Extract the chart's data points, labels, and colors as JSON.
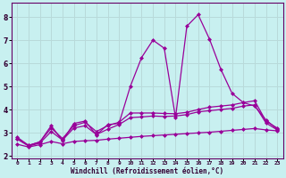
{
  "xlabel": "Windchill (Refroidissement éolien,°C)",
  "bg_color": "#c8f0f0",
  "grid_color": "#b8dada",
  "line_color": "#990099",
  "xlim": [
    -0.5,
    23.5
  ],
  "ylim": [
    1.9,
    8.6
  ],
  "xticks": [
    0,
    1,
    2,
    3,
    4,
    5,
    6,
    7,
    8,
    9,
    10,
    11,
    12,
    13,
    14,
    15,
    16,
    17,
    18,
    19,
    20,
    21,
    22,
    23
  ],
  "yticks": [
    2,
    3,
    4,
    5,
    6,
    7,
    8
  ],
  "line1": [
    2.8,
    2.45,
    2.6,
    3.3,
    2.65,
    3.4,
    3.5,
    2.9,
    3.35,
    3.4,
    5.0,
    6.25,
    7.0,
    6.65,
    3.65,
    7.6,
    8.1,
    7.05,
    5.75,
    4.7,
    4.3,
    4.15,
    3.55,
    3.15
  ],
  "line2": [
    2.75,
    2.45,
    2.6,
    3.2,
    2.75,
    3.3,
    3.45,
    3.05,
    3.3,
    3.45,
    3.85,
    3.85,
    3.85,
    3.83,
    3.82,
    3.88,
    4.0,
    4.1,
    4.15,
    4.2,
    4.3,
    4.38,
    3.5,
    3.2
  ],
  "line3": [
    2.72,
    2.42,
    2.55,
    3.05,
    2.68,
    3.2,
    3.3,
    2.92,
    3.15,
    3.35,
    3.65,
    3.68,
    3.72,
    3.7,
    3.72,
    3.78,
    3.9,
    3.95,
    4.0,
    4.05,
    4.15,
    4.2,
    3.42,
    3.12
  ],
  "line4": [
    2.5,
    2.38,
    2.48,
    2.62,
    2.52,
    2.62,
    2.65,
    2.67,
    2.72,
    2.76,
    2.8,
    2.84,
    2.87,
    2.9,
    2.93,
    2.96,
    2.99,
    3.02,
    3.06,
    3.1,
    3.14,
    3.18,
    3.12,
    3.08
  ]
}
